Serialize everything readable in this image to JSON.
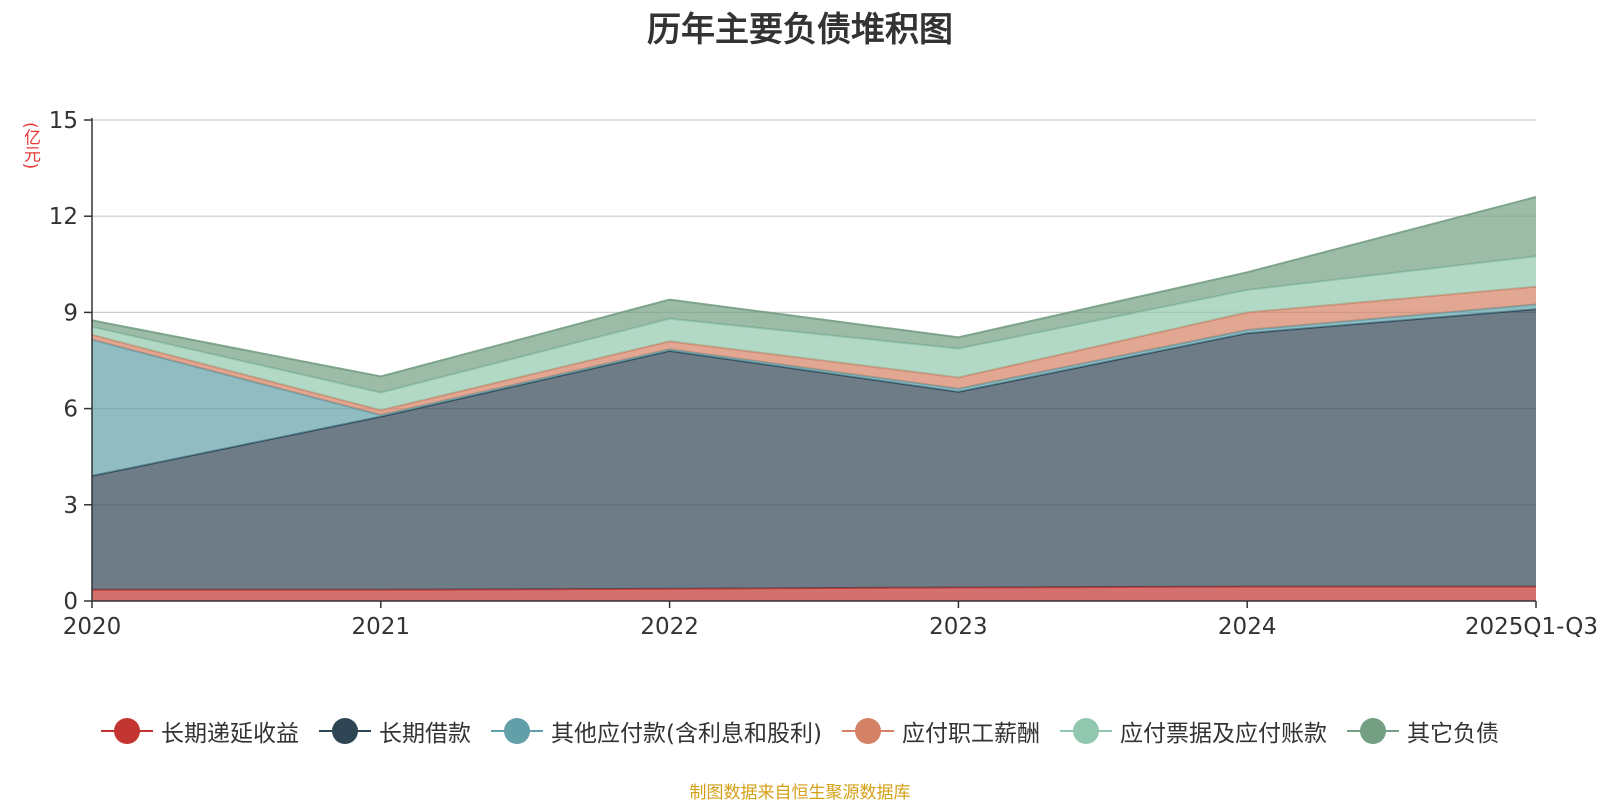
{
  "chart_data": {
    "type": "area",
    "stacked": true,
    "title": "历年主要负债堆积图",
    "ylabel": "(亿元)",
    "xlabel": "",
    "categories": [
      "2020",
      "2021",
      "2022",
      "2023",
      "2024",
      "2025Q1-Q3"
    ],
    "ylim": [
      0,
      15
    ],
    "yticks": [
      0,
      3,
      6,
      9,
      12,
      15
    ],
    "grid": true,
    "legend_position": "bottom",
    "series": [
      {
        "name": "长期递延收益",
        "color": "#c23531",
        "values": [
          0.35,
          0.35,
          0.38,
          0.42,
          0.45,
          0.45
        ]
      },
      {
        "name": "长期借款",
        "color": "#2f4554",
        "values": [
          3.55,
          5.4,
          7.42,
          6.1,
          7.9,
          8.65
        ]
      },
      {
        "name": "其他应付款(含利息和股利)",
        "color": "#61a0a8",
        "values": [
          4.25,
          0.05,
          0.05,
          0.1,
          0.1,
          0.15
        ]
      },
      {
        "name": "应付职工薪酬",
        "color": "#d48265",
        "values": [
          0.15,
          0.15,
          0.25,
          0.35,
          0.55,
          0.55
        ]
      },
      {
        "name": "应付票据及应付账款",
        "color": "#91c7ae",
        "values": [
          0.25,
          0.55,
          0.7,
          0.9,
          0.7,
          0.95
        ]
      },
      {
        "name": "其它负债",
        "color": "#749f83",
        "values": [
          0.2,
          0.5,
          0.6,
          0.35,
          0.55,
          1.85
        ]
      }
    ]
  },
  "source_note": "制图数据来自恒生聚源数据库"
}
